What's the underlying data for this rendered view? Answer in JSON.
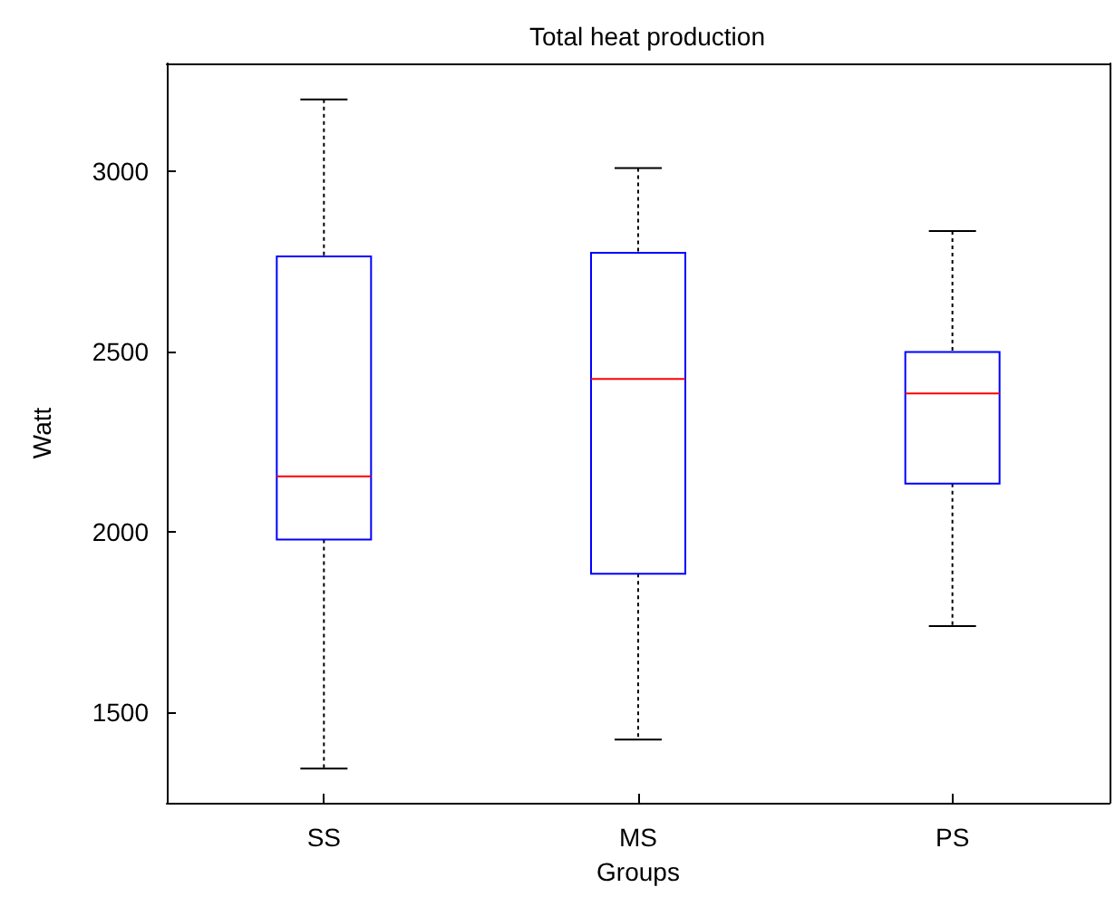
{
  "chart_data": {
    "type": "box",
    "title": "Total heat production",
    "xlabel": "Groups",
    "ylabel": "Watt",
    "categories": [
      "SS",
      "MS",
      "PS"
    ],
    "series": [
      {
        "color": "#0000ff",
        "boxes": [
          {
            "low": 1345,
            "q1": 1980,
            "median": 2155,
            "q3": 2765,
            "high": 3200
          },
          {
            "low": 1425,
            "q1": 1885,
            "median": 2425,
            "q3": 2775,
            "high": 3010
          },
          {
            "low": 1740,
            "q1": 2135,
            "median": 2385,
            "q3": 2500,
            "high": 2835
          }
        ]
      }
    ],
    "ylim": [
      1250,
      3300
    ],
    "yticks": [
      1500,
      2000,
      2500,
      3000
    ],
    "grid": false
  }
}
